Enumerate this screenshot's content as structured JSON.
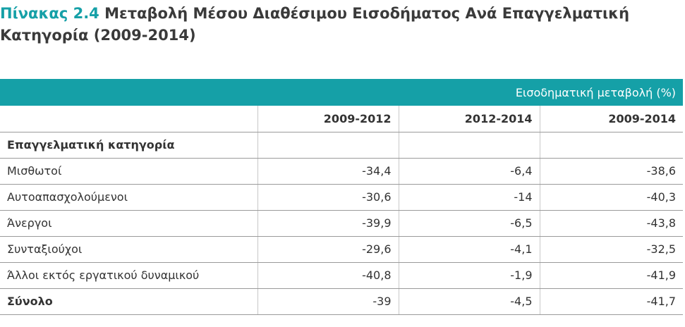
{
  "title": {
    "label": "Πίνακας 2.4",
    "text": "Μεταβολή Μέσου Διαθέσιμου Εισοδήματος Ανά Επαγγελματική Κατηγορία (2009-2014)"
  },
  "table": {
    "band": "Εισοδηματική μεταβολή (%)",
    "columns": [
      "2009-2012",
      "2012-2014",
      "2009-2014"
    ],
    "section": "Επαγγελματική κατηγορία",
    "rows": [
      [
        "Μισθωτοί",
        "-34,4",
        "-6,4",
        "-38,6"
      ],
      [
        "Αυτοαπασχολούμενοι",
        "-30,6",
        "-14",
        "-40,3"
      ],
      [
        "Άνεργοι",
        "-39,9",
        "-6,5",
        "-43,8"
      ],
      [
        "Συνταξιούχοι",
        "-29,6",
        "-4,1",
        "-32,5"
      ],
      [
        "Άλλοι εκτός εργατικού δυναμικού",
        "-40,8",
        "-1,9",
        "-41,9"
      ]
    ],
    "total": [
      "Σύνολο",
      "-39",
      "-4,5",
      "-41,7"
    ]
  }
}
